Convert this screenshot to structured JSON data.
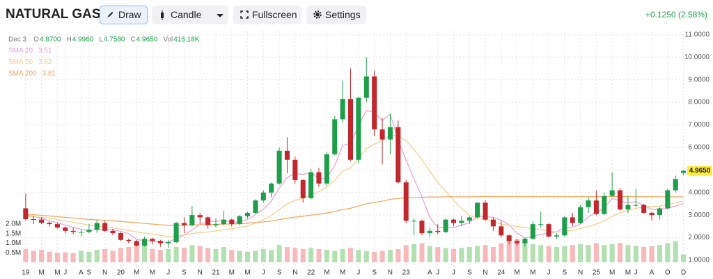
{
  "toolbar": {
    "title": "NATURAL GAS",
    "buttons": [
      "Draw",
      "Candle",
      "Fullscreen",
      "Settings"
    ],
    "change": "+0.1250 (2.58%)"
  },
  "chart_data": {
    "type": "candlestick",
    "header": {
      "date": "Dec 3",
      "fields": [
        {
          "key": "O",
          "value": "4.8700"
        },
        {
          "key": "H",
          "value": "4.9960"
        },
        {
          "key": "L",
          "value": "4.7580"
        },
        {
          "key": "C",
          "value": "4.9650"
        },
        {
          "key": "Vol",
          "value": "416.18K"
        }
      ]
    },
    "last_label": "4.9650",
    "up_color": "#1e9e4a",
    "down_color": "#c0282d",
    "volume_up_color": "#b3e0b0",
    "volume_down_color": "#f7b9b9",
    "x": [
      0,
      1,
      2,
      3,
      4,
      5,
      6,
      7,
      8,
      9,
      10,
      11,
      12,
      13,
      14,
      15,
      16,
      17,
      18,
      19,
      20,
      21,
      22,
      23,
      24,
      25,
      26,
      27,
      28,
      29,
      30,
      31,
      32,
      33,
      34,
      35,
      36,
      37,
      38,
      39,
      40,
      41,
      42,
      43,
      44,
      45,
      46,
      47,
      48,
      49,
      50,
      51,
      52,
      53,
      54,
      55,
      56,
      57,
      58,
      59,
      60,
      61,
      62,
      63,
      64,
      65,
      66,
      67,
      68,
      69,
      70,
      71,
      72,
      73,
      74,
      75,
      76,
      77,
      78,
      79,
      80,
      81,
      82,
      83
    ],
    "open": [
      3.3,
      2.82,
      2.8,
      2.66,
      2.6,
      2.45,
      2.3,
      2.25,
      2.25,
      2.35,
      2.65,
      2.3,
      2.2,
      1.9,
      1.85,
      1.65,
      1.95,
      1.85,
      1.75,
      1.8,
      2.65,
      2.55,
      3.0,
      2.9,
      2.55,
      2.6,
      2.8,
      2.6,
      2.95,
      3.1,
      3.65,
      4.0,
      4.4,
      5.85,
      5.45,
      4.55,
      3.75,
      4.9,
      4.4,
      5.7,
      7.25,
      8.15,
      5.45,
      8.2,
      9.15,
      6.8,
      6.35,
      6.9,
      4.45,
      2.75,
      2.75,
      2.2,
      2.3,
      2.25,
      2.8,
      2.65,
      2.75,
      2.9,
      3.55,
      2.8,
      2.5,
      2.1,
      1.85,
      1.75,
      1.95,
      2.6,
      2.6,
      2.05,
      2.1,
      2.9,
      2.65,
      3.35,
      3.65,
      3.05,
      3.85,
      4.1,
      3.25,
      3.45,
      3.45,
      3.1,
      3.0,
      3.3,
      4.1,
      4.87
    ],
    "high": [
      3.95,
      2.95,
      2.9,
      2.72,
      2.65,
      2.5,
      2.45,
      2.35,
      2.6,
      2.8,
      2.75,
      2.4,
      2.25,
      1.95,
      1.9,
      2.05,
      2.0,
      1.9,
      1.9,
      2.7,
      2.9,
      3.4,
      3.1,
      2.95,
      2.85,
      3.2,
      2.85,
      3.0,
      3.15,
      3.7,
      4.1,
      4.45,
      6.0,
      6.45,
      5.6,
      4.6,
      5.05,
      5.1,
      5.8,
      7.4,
      8.95,
      9.5,
      8.25,
      10.0,
      9.4,
      7.3,
      7.5,
      7.2,
      4.55,
      2.85,
      2.8,
      2.45,
      2.6,
      2.85,
      2.85,
      2.95,
      2.95,
      3.55,
      3.65,
      2.9,
      2.75,
      2.15,
      1.95,
      2.0,
      2.75,
      3.15,
      2.65,
      2.2,
      2.95,
      3.1,
      3.45,
      3.8,
      4.1,
      4.0,
      4.9,
      4.2,
      3.85,
      4.15,
      3.5,
      3.15,
      3.35,
      4.15,
      4.75,
      4.996
    ],
    "low": [
      2.75,
      2.6,
      2.6,
      2.5,
      2.4,
      2.2,
      2.15,
      2.05,
      2.2,
      2.2,
      2.25,
      2.1,
      1.85,
      1.75,
      1.6,
      1.6,
      1.7,
      1.6,
      1.55,
      1.75,
      2.2,
      2.5,
      2.6,
      2.4,
      2.45,
      2.55,
      2.5,
      2.55,
      2.85,
      3.05,
      3.55,
      3.8,
      4.35,
      4.85,
      4.4,
      3.55,
      3.7,
      4.25,
      4.3,
      5.65,
      7.1,
      5.4,
      5.3,
      8.0,
      6.5,
      5.25,
      5.7,
      4.4,
      2.65,
      2.1,
      2.1,
      2.05,
      2.15,
      2.2,
      2.5,
      2.5,
      2.6,
      2.85,
      2.75,
      2.3,
      2.0,
      1.7,
      1.65,
      1.6,
      1.9,
      2.45,
      2.0,
      1.95,
      2.05,
      2.5,
      2.6,
      3.1,
      3.0,
      3.0,
      3.8,
      3.2,
      3.1,
      3.35,
      3.05,
      2.75,
      2.8,
      3.25,
      4.0,
      4.758
    ],
    "close": [
      2.82,
      2.8,
      2.66,
      2.6,
      2.45,
      2.3,
      2.25,
      2.25,
      2.35,
      2.65,
      2.3,
      2.2,
      1.9,
      1.85,
      1.65,
      1.95,
      1.85,
      1.75,
      1.8,
      2.65,
      2.55,
      3.0,
      2.9,
      2.55,
      2.6,
      2.8,
      2.6,
      2.95,
      3.1,
      3.65,
      4.0,
      4.4,
      5.85,
      5.45,
      4.55,
      3.75,
      4.9,
      4.4,
      5.7,
      7.25,
      8.15,
      5.45,
      8.2,
      9.15,
      6.8,
      6.35,
      6.9,
      4.45,
      2.75,
      2.75,
      2.2,
      2.3,
      2.25,
      2.8,
      2.65,
      2.75,
      2.9,
      3.55,
      2.8,
      2.5,
      2.1,
      1.85,
      1.75,
      1.95,
      2.6,
      2.6,
      2.05,
      2.1,
      2.9,
      2.65,
      3.35,
      3.65,
      3.05,
      3.85,
      4.1,
      3.25,
      3.45,
      3.45,
      3.1,
      3.0,
      3.3,
      4.1,
      4.6,
      4.965
    ],
    "volume": [
      700000,
      600000,
      650000,
      550000,
      500000,
      520000,
      480000,
      600000,
      550000,
      650000,
      700000,
      600000,
      750000,
      800000,
      1000000,
      900000,
      700000,
      650000,
      700000,
      800000,
      750000,
      900000,
      850000,
      750000,
      700000,
      800000,
      650000,
      600000,
      550000,
      600000,
      700000,
      650000,
      900000,
      800000,
      750000,
      700000,
      750000,
      700000,
      650000,
      600000,
      700000,
      750000,
      650000,
      600000,
      550000,
      600000,
      650000,
      700000,
      900000,
      950000,
      1000000,
      850000,
      800000,
      750000,
      700000,
      750000,
      800000,
      850000,
      900000,
      800000,
      1000000,
      1100000,
      1200000,
      1000000,
      950000,
      900000,
      850000,
      800000,
      850000,
      900000,
      950000,
      900000,
      1000000,
      900000,
      950000,
      1000000,
      900000,
      850000,
      800000,
      850000,
      900000,
      1000000,
      1100000,
      416180
    ],
    "sma": [
      {
        "name": "SMA 20",
        "color": "#e9a3d6",
        "last_label": "3.51",
        "values": [
          3.0,
          2.95,
          2.85,
          2.75,
          2.67,
          2.56,
          2.45,
          2.37,
          2.32,
          2.36,
          2.36,
          2.35,
          2.28,
          2.18,
          1.92,
          1.87,
          1.84,
          1.81,
          1.8,
          1.96,
          2.12,
          2.35,
          2.58,
          2.73,
          2.72,
          2.77,
          2.69,
          2.7,
          2.81,
          3.02,
          3.26,
          3.62,
          4.2,
          4.67,
          4.85,
          4.8,
          4.9,
          4.61,
          4.66,
          5.2,
          6.08,
          6.19,
          6.96,
          7.64,
          7.55,
          7.19,
          7.48,
          6.33,
          5.45,
          4.6,
          3.81,
          2.89,
          2.45,
          2.46,
          2.44,
          2.55,
          2.67,
          2.93,
          2.93,
          2.9,
          2.77,
          2.56,
          2.2,
          1.98,
          2.05,
          2.15,
          2.19,
          2.26,
          2.45,
          2.46,
          2.61,
          2.93,
          3.12,
          3.31,
          3.74,
          3.64,
          3.54,
          3.6,
          3.43,
          3.25,
          3.26,
          3.3,
          3.4,
          3.51
        ]
      },
      {
        "name": "SMA 50",
        "color": "#f3d08e",
        "last_label": "3.62",
        "values": [
          2.95,
          2.93,
          2.9,
          2.86,
          2.8,
          2.74,
          2.68,
          2.62,
          2.56,
          2.52,
          2.48,
          2.44,
          2.38,
          2.32,
          2.25,
          2.2,
          2.15,
          2.1,
          2.05,
          2.08,
          2.12,
          2.18,
          2.22,
          2.25,
          2.3,
          2.35,
          2.4,
          2.45,
          2.52,
          2.65,
          2.8,
          2.98,
          3.25,
          3.5,
          3.65,
          3.75,
          3.9,
          4.05,
          4.25,
          4.55,
          4.95,
          5.1,
          5.5,
          5.95,
          6.15,
          6.3,
          6.55,
          6.5,
          6.3,
          5.9,
          5.45,
          4.95,
          4.45,
          4.05,
          3.65,
          3.3,
          3.0,
          2.85,
          2.8,
          2.7,
          2.6,
          2.55,
          2.5,
          2.45,
          2.4,
          2.35,
          2.3,
          2.25,
          2.28,
          2.32,
          2.4,
          2.5,
          2.6,
          2.75,
          2.95,
          3.1,
          3.2,
          3.3,
          3.35,
          3.38,
          3.4,
          3.45,
          3.55,
          3.62
        ]
      },
      {
        "name": "SMA 200",
        "color": "#f0a860",
        "last_label": "3.81",
        "values": [
          3.05,
          3.02,
          2.99,
          2.96,
          2.93,
          2.9,
          2.87,
          2.84,
          2.81,
          2.79,
          2.77,
          2.75,
          2.72,
          2.69,
          2.66,
          2.63,
          2.6,
          2.57,
          2.55,
          2.55,
          2.55,
          2.56,
          2.57,
          2.58,
          2.59,
          2.6,
          2.61,
          2.62,
          2.64,
          2.67,
          2.7,
          2.74,
          2.8,
          2.86,
          2.91,
          2.95,
          3.0,
          3.04,
          3.09,
          3.16,
          3.25,
          3.3,
          3.4,
          3.5,
          3.56,
          3.62,
          3.7,
          3.74,
          3.76,
          3.78,
          3.79,
          3.8,
          3.8,
          3.81,
          3.81,
          3.81,
          3.81,
          3.82,
          3.82,
          3.82,
          3.82,
          3.82,
          3.82,
          3.82,
          3.82,
          3.82,
          3.82,
          3.82,
          3.82,
          3.82,
          3.82,
          3.82,
          3.82,
          3.82,
          3.82,
          3.82,
          3.82,
          3.82,
          3.82,
          3.82,
          3.81,
          3.81,
          3.81,
          3.81
        ]
      }
    ],
    "xlim": [
      -0.6,
      83.3
    ],
    "xticks": [
      {
        "value": 0,
        "label": "19"
      },
      {
        "value": 2,
        "label": "M"
      },
      {
        "value": 4,
        "label": "M"
      },
      {
        "value": 5,
        "label": "J"
      },
      {
        "value": 7,
        "label": "A"
      },
      {
        "value": 8,
        "label": "S"
      },
      {
        "value": 10,
        "label": "N"
      },
      {
        "value": 12,
        "label": "20"
      },
      {
        "value": 14,
        "label": "M"
      },
      {
        "value": 16,
        "label": "M"
      },
      {
        "value": 18,
        "label": "J"
      },
      {
        "value": 20,
        "label": "S"
      },
      {
        "value": 22,
        "label": "N"
      },
      {
        "value": 24,
        "label": "21"
      },
      {
        "value": 26,
        "label": "M"
      },
      {
        "value": 28,
        "label": "M"
      },
      {
        "value": 30,
        "label": "J"
      },
      {
        "value": 32,
        "label": "S"
      },
      {
        "value": 34,
        "label": "N"
      },
      {
        "value": 36,
        "label": "22"
      },
      {
        "value": 38,
        "label": "M"
      },
      {
        "value": 40,
        "label": "M"
      },
      {
        "value": 42,
        "label": "J"
      },
      {
        "value": 44,
        "label": "S"
      },
      {
        "value": 46,
        "label": "N"
      },
      {
        "value": 48,
        "label": "23"
      },
      {
        "value": 51,
        "label": "A"
      },
      {
        "value": 52,
        "label": "J"
      },
      {
        "value": 54,
        "label": "J"
      },
      {
        "value": 56,
        "label": "S"
      },
      {
        "value": 58,
        "label": "N"
      },
      {
        "value": 60,
        "label": "24"
      },
      {
        "value": 62,
        "label": "M"
      },
      {
        "value": 64,
        "label": "M"
      },
      {
        "value": 66,
        "label": "J"
      },
      {
        "value": 68,
        "label": "S"
      },
      {
        "value": 70,
        "label": "N"
      },
      {
        "value": 72,
        "label": "25"
      },
      {
        "value": 74,
        "label": "M"
      },
      {
        "value": 76,
        "label": "M"
      },
      {
        "value": 77,
        "label": "J"
      },
      {
        "value": 79,
        "label": "A"
      },
      {
        "value": 81,
        "label": "O"
      },
      {
        "value": 83,
        "label": "D"
      }
    ],
    "ylim": [
      0.66,
      11.15
    ],
    "yticks": [
      {
        "value": 1,
        "label": "1.0000"
      },
      {
        "value": 2,
        "label": "2.0000"
      },
      {
        "value": 3,
        "label": "3.0000"
      },
      {
        "value": 4,
        "label": "4.0000"
      },
      {
        "value": 5,
        "label": "5.0000"
      },
      {
        "value": 6,
        "label": "6.0000"
      },
      {
        "value": 7,
        "label": "7.0000"
      },
      {
        "value": 8,
        "label": "8.0000"
      },
      {
        "value": 9,
        "label": "9.0000"
      },
      {
        "value": 10,
        "label": "10.0000"
      },
      {
        "value": 11,
        "label": "11.0000"
      }
    ],
    "vlim": [
      0,
      2000000
    ],
    "vticks": [
      {
        "value": 500000,
        "label": "0.5M"
      },
      {
        "value": 1000000,
        "label": "1.0M"
      },
      {
        "value": 1500000,
        "label": "1.5M"
      },
      {
        "value": 2000000,
        "label": "2.0M"
      }
    ],
    "grid": true
  }
}
